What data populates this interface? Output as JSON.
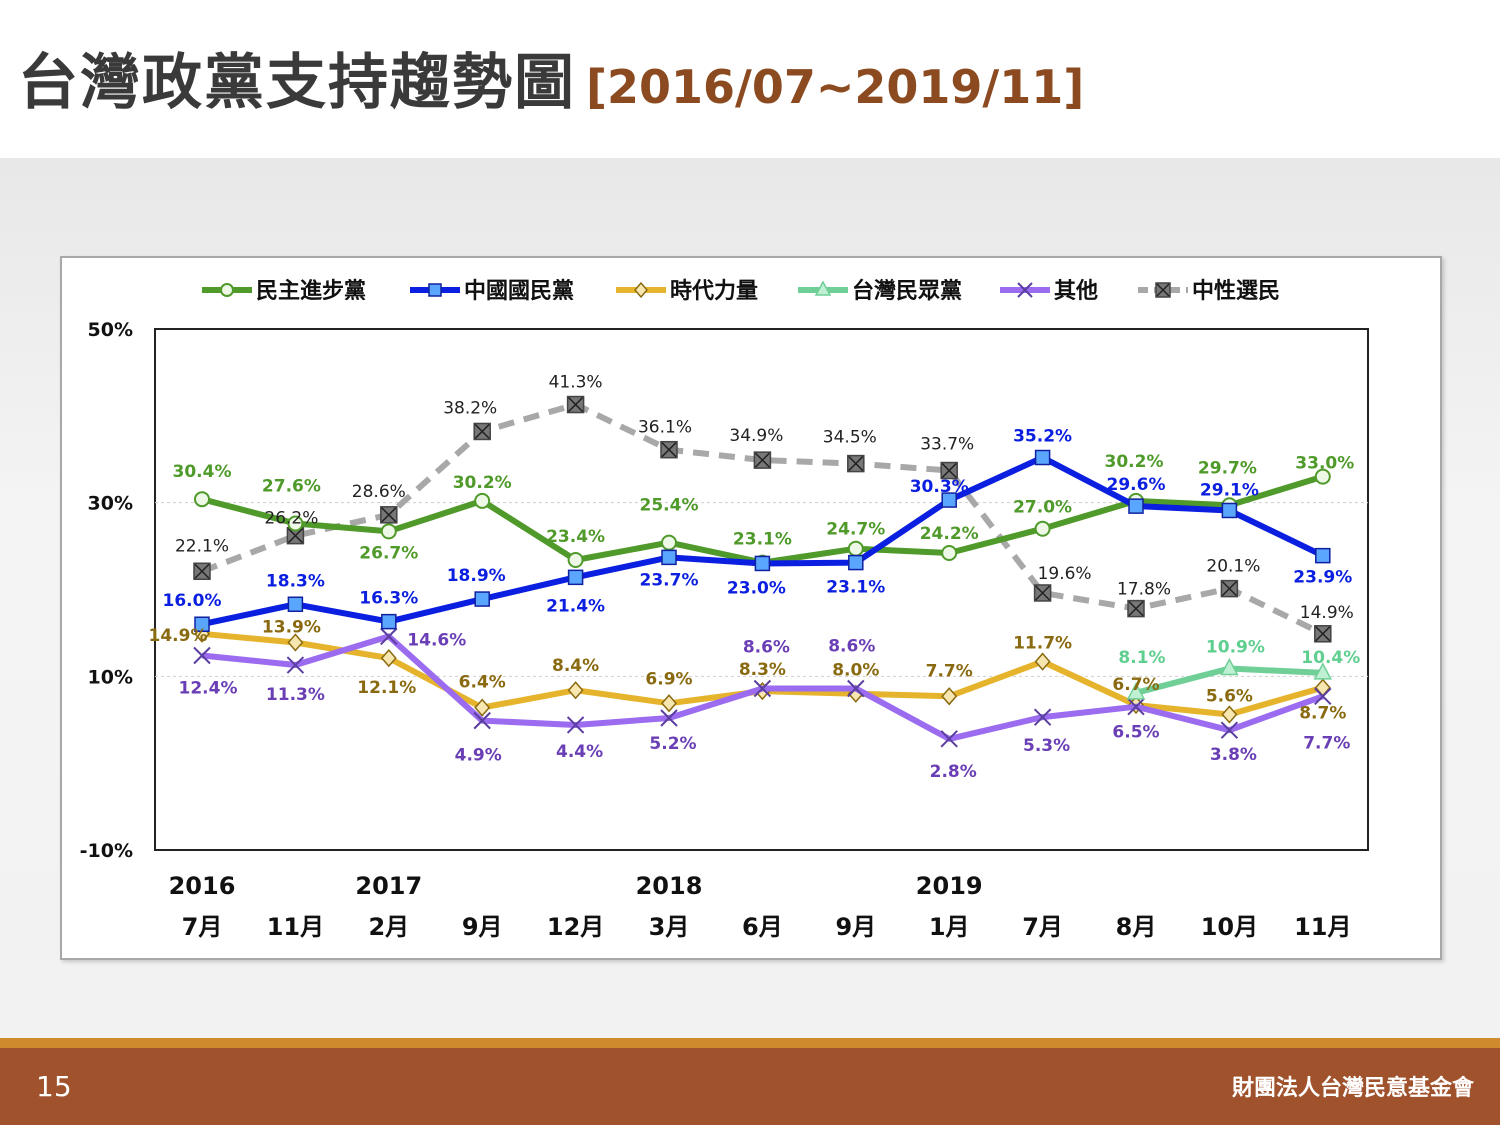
{
  "slide": {
    "title": "台灣政黨支持趨勢圖",
    "range": "[2016/07~2019/11]",
    "page_number": "15",
    "organization": "財團法人台灣民意基金會"
  },
  "chart_data": {
    "type": "line",
    "ylim": [
      -10,
      50
    ],
    "yticks": [
      "50%",
      "30%",
      "10%",
      "-10%"
    ],
    "ytick_values": [
      50,
      30,
      10,
      -10
    ],
    "years": [
      {
        "label": "2016",
        "index": 0
      },
      {
        "label": "2017",
        "index": 2
      },
      {
        "label": "2018",
        "index": 5
      },
      {
        "label": "2019",
        "index": 8
      }
    ],
    "categories": [
      "7月",
      "11月",
      "2月",
      "9月",
      "12月",
      "3月",
      "6月",
      "9月",
      "1月",
      "7月",
      "8月",
      "10月",
      "11月"
    ],
    "legend_position": "top",
    "grid": "horizontal",
    "series": [
      {
        "name": "民主進步黨",
        "color": "#4f9a2a",
        "marker": "circle",
        "dash": false,
        "values": [
          30.4,
          27.6,
          26.7,
          30.2,
          23.4,
          25.4,
          23.1,
          24.7,
          24.2,
          27.0,
          30.2,
          29.7,
          33.0
        ],
        "labels": [
          "30.4%",
          "27.6%",
          "26.7%",
          "30.2%",
          "23.4%",
          "25.4%",
          "23.1%",
          "24.7%",
          "24.2%",
          "27.0%",
          "30.2%",
          "29.7%",
          "33.0%"
        ]
      },
      {
        "name": "中國國民黨",
        "color": "#0b1fe0",
        "marker": "square",
        "dash": false,
        "values": [
          16.0,
          18.3,
          16.3,
          18.9,
          21.4,
          23.7,
          23.0,
          23.1,
          30.3,
          35.2,
          29.6,
          29.1,
          23.9
        ],
        "labels": [
          "16.0%",
          "18.3%",
          "16.3%",
          "18.9%",
          "21.4%",
          "23.7%",
          "23.0%",
          "23.1%",
          "30.3%",
          "35.2%",
          "29.6%",
          "29.1%",
          "23.9%"
        ]
      },
      {
        "name": "時代力量",
        "color": "#e6b42c",
        "marker": "diamond",
        "dash": false,
        "values": [
          14.9,
          13.9,
          12.1,
          6.4,
          8.4,
          6.9,
          8.3,
          8.0,
          7.7,
          11.7,
          6.7,
          5.6,
          8.7
        ],
        "labels": [
          "14.9%",
          "13.9%",
          "12.1%",
          "6.4%",
          "8.4%",
          "6.9%",
          "8.3%",
          "8.0%",
          "7.7%",
          "11.7%",
          "6.7%",
          "5.6%",
          "8.7%"
        ]
      },
      {
        "name": "台灣民眾黨",
        "color": "#6fcf97",
        "marker": "triangle",
        "dash": false,
        "values": [
          null,
          null,
          null,
          null,
          null,
          null,
          null,
          null,
          null,
          null,
          8.1,
          10.9,
          10.4
        ],
        "labels": [
          "",
          "",
          "",
          "",
          "",
          "",
          "",
          "",
          "",
          "",
          "8.1%",
          "10.9%",
          "10.4%"
        ]
      },
      {
        "name": "其他",
        "color": "#9b6cf0",
        "marker": "x",
        "dash": false,
        "values": [
          12.4,
          11.3,
          14.6,
          4.9,
          4.4,
          5.2,
          8.6,
          8.6,
          2.8,
          5.3,
          6.5,
          3.8,
          7.7
        ],
        "labels": [
          "12.4%",
          "11.3%",
          "14.6%",
          "4.9%",
          "4.4%",
          "5.2%",
          "8.6%",
          "8.6%",
          "2.8%",
          "5.3%",
          "6.5%",
          "3.8%",
          "7.7%"
        ]
      },
      {
        "name": "中性選民",
        "color": "#a8a8a8",
        "marker": "boxx",
        "dash": true,
        "values": [
          22.1,
          26.2,
          28.6,
          38.2,
          41.3,
          36.1,
          34.9,
          34.5,
          33.7,
          19.6,
          17.8,
          20.1,
          14.9
        ],
        "labels": [
          "22.1%",
          "26.2%",
          "28.6%",
          "38.2%",
          "41.3%",
          "36.1%",
          "34.9%",
          "34.5%",
          "33.7%",
          "19.6%",
          "17.8%",
          "20.1%",
          "14.9%"
        ]
      }
    ]
  }
}
